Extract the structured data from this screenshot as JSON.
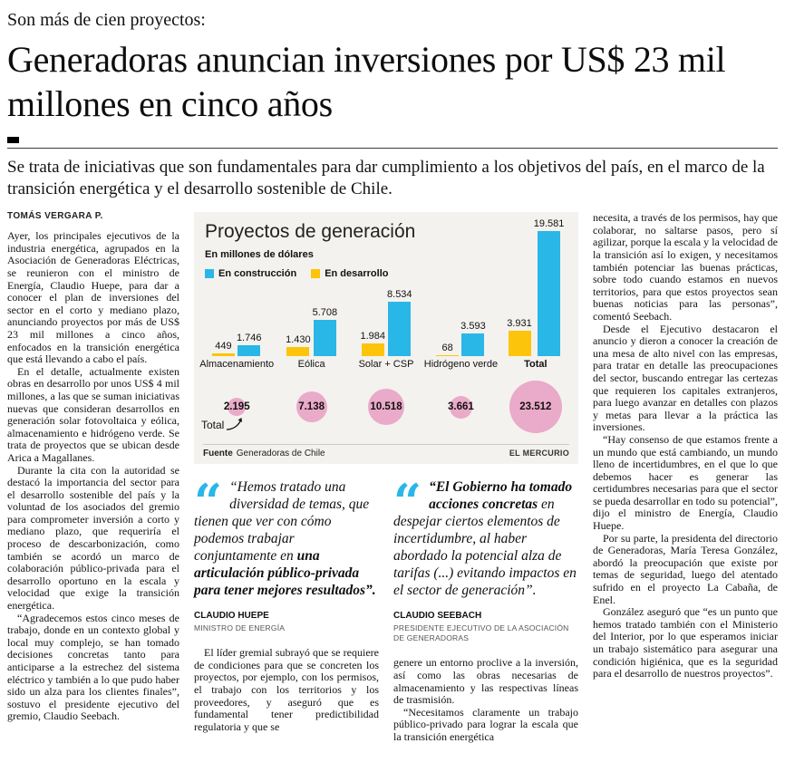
{
  "page": {
    "kicker": "Son más de cien proyectos:",
    "headline": "Generadoras anuncian inversiones por US$ 23 mil millones en cinco años",
    "deck": "Se trata de iniciativas que son fundamentales para dar cumplimiento a los objetivos del país, en el marco de la transición energética y el desarrollo sostenible de Chile.",
    "byline": "TOMÁS VERGARA P."
  },
  "article": {
    "col1": [
      "Ayer, los principales ejecutivos de la industria energética, agrupados en la Asociación de Generadoras Eléctricas, se reunieron con el ministro de Energía, Claudio Huepe, para dar a conocer el plan de inversiones del sector en el corto y mediano plazo, anunciando proyectos por más de US$ 23 mil millones a cinco años, enfocados en la transición energética que está llevando a cabo el país.",
      "En el detalle, actualmente existen obras en desarrollo por unos US$ 4 mil millones, a las que se suman iniciativas nuevas que consideran desarrollos en generación solar fotovoltaica y eólica, almacenamiento e hidrógeno verde. Se trata de proyectos que se ubican desde Arica a Magallanes.",
      "Durante la cita con la autoridad se destacó la importancia del sector para el desarrollo sostenible del país y la voluntad de los asociados del gremio para comprometer inversión a corto y mediano plazo, que requeriría el proceso de descarbonización, como también se acordó un marco de colaboración público-privada para el desarrollo oportuno en la escala y velocidad que exige la transición energética.",
      "“Agradecemos estos cinco meses de trabajo, donde en un contexto global y local muy complejo, se han tomado decisiones concretas tanto para anticiparse a la estrechez del sistema eléctrico y también a lo que pudo haber sido un alza para los clientes finales”, sostuvo el presidente ejecutivo del gremio, Claudio Seebach."
    ],
    "col2": [
      "El líder gremial subrayó que se requiere de condiciones para que se concreten los proyectos, por ejemplo, con los permisos, el trabajo con los territorios y los proveedores, y aseguró que es fundamental tener predictibilidad regulatoria y que se"
    ],
    "col3": [
      "genere un entorno proclive a la inversión, así como las obras necesarias de almacenamiento y las respectivas líneas de trasmisión.",
      "“Necesitamos claramente un trabajo público-privado para lograr la escala que la transición energética"
    ],
    "col4": [
      "necesita, a través de los permisos, hay que colaborar, no saltarse pasos, pero sí agilizar, porque la escala y la velocidad de la transición así lo exigen, y necesitamos también potenciar las buenas prácticas, sobre todo cuando estamos en nuevos territorios, para que estos proyectos sean buenas noticias para las personas”, comentó Seebach.",
      "Desde el Ejecutivo destacaron el anuncio y dieron a conocer la creación de una mesa de alto nivel con las empresas, para tratar en detalle las preocupaciones del sector, buscando entregar las certezas que requieren los capitales extranjeros, para luego avanzar en detalles con plazos y metas para llevar a la práctica las inversiones.",
      "“Hay consenso de que estamos frente a un mundo que está cambiando, un mundo lleno de incertidumbres, en el que lo que debemos hacer es generar las certidumbres necesarias para que el sector se pueda desarrollar en todo su potencial”, dijo el ministro de Energía, Claudio Huepe.",
      "Por su parte, la presidenta del directorio de Generadoras, María Teresa González, abordó la preocupación que existe por temas de seguridad, luego del atentado sufrido en el proyecto La Cabaña, de Enel.",
      "González aseguró que “es un punto que hemos tratado también con el Ministerio del Interior, por lo que esperamos iniciar un trabajo sistemático para asegurar una condición higiénica, que es la seguridad para el desarrollo de nuestros proyectos”."
    ]
  },
  "quotes": [
    {
      "segments": [
        {
          "text": "“Hemos tratado una diversidad de temas, que tienen que ver con cómo podemos trabajar conjuntamente en ",
          "bold": false
        },
        {
          "text": "una articulación público-privada para tener mejores resultados”.",
          "bold": true
        }
      ],
      "name": "CLAUDIO HUEPE",
      "role": "MINISTRO DE ENERGÍA"
    },
    {
      "segments": [
        {
          "text": "“El Gobierno ha tomado acciones concretas",
          "bold": true
        },
        {
          "text": " en despejar ciertos elementos de incertidumbre, al haber abordado la potencial alza de tarifas (...) evitando impactos en el sector de generación”.",
          "bold": false
        }
      ],
      "name": "CLAUDIO SEEBACH",
      "role": "PRESIDENTE EJECUTIVO DE LA ASOCIACIÓN DE GENERADORAS"
    }
  ],
  "chart_data": {
    "type": "bar",
    "title": "Proyectos de generación",
    "subtitle": "En millones de dólares",
    "categories": [
      "Almacenamiento",
      "Eólica",
      "Solar + CSP",
      "Hidrógeno verde",
      "Total"
    ],
    "series": [
      {
        "name": "En construcción",
        "color": "#29b7e8",
        "values": [
          1746,
          5708,
          8534,
          3593,
          19581
        ],
        "labels": [
          "1.746",
          "5.708",
          "8.534",
          "3.593",
          "19.581"
        ]
      },
      {
        "name": "En desarrollo",
        "color": "#fcc40a",
        "values": [
          449,
          1430,
          1984,
          68,
          3931
        ],
        "labels": [
          "449",
          "1.430",
          "1.984",
          "68",
          "3.931"
        ]
      }
    ],
    "totals": {
      "annotation": "Total",
      "color": "#eaaac9",
      "values": [
        2195,
        7138,
        10518,
        3661,
        23512
      ],
      "labels": [
        "2.195",
        "7.138",
        "10.518",
        "3.661",
        "23.512"
      ]
    },
    "ylim": [
      0,
      19581
    ],
    "grid": false,
    "legend_position": "top-left",
    "source_label": "Fuente",
    "source": "Generadoras de Chile",
    "credit": "EL MERCURIO"
  }
}
